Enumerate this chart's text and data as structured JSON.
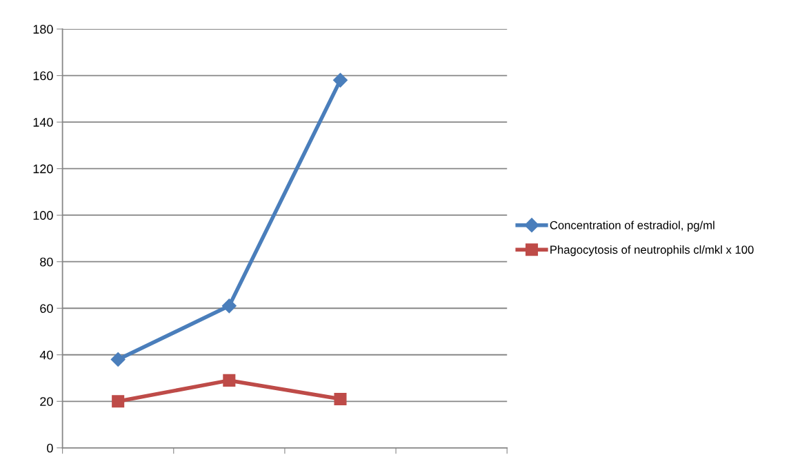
{
  "chart_data": {
    "type": "line",
    "categories": [
      null,
      null,
      null,
      null
    ],
    "series": [
      {
        "name": "Concentration of estradiol, pg/ml",
        "color": "#4a7ebb",
        "marker": "diamond",
        "values": [
          38,
          61,
          158,
          null
        ]
      },
      {
        "name": "Phagocytosis of neutrophils cl/mkl x 100",
        "color": "#be4b48",
        "marker": "square",
        "values": [
          20,
          29,
          21,
          null
        ]
      }
    ],
    "ylim": [
      0,
      180
    ],
    "yticks": [
      0,
      20,
      40,
      60,
      80,
      100,
      120,
      140,
      160,
      180
    ],
    "grid": "y",
    "legend": "right",
    "line_style": "solid"
  }
}
